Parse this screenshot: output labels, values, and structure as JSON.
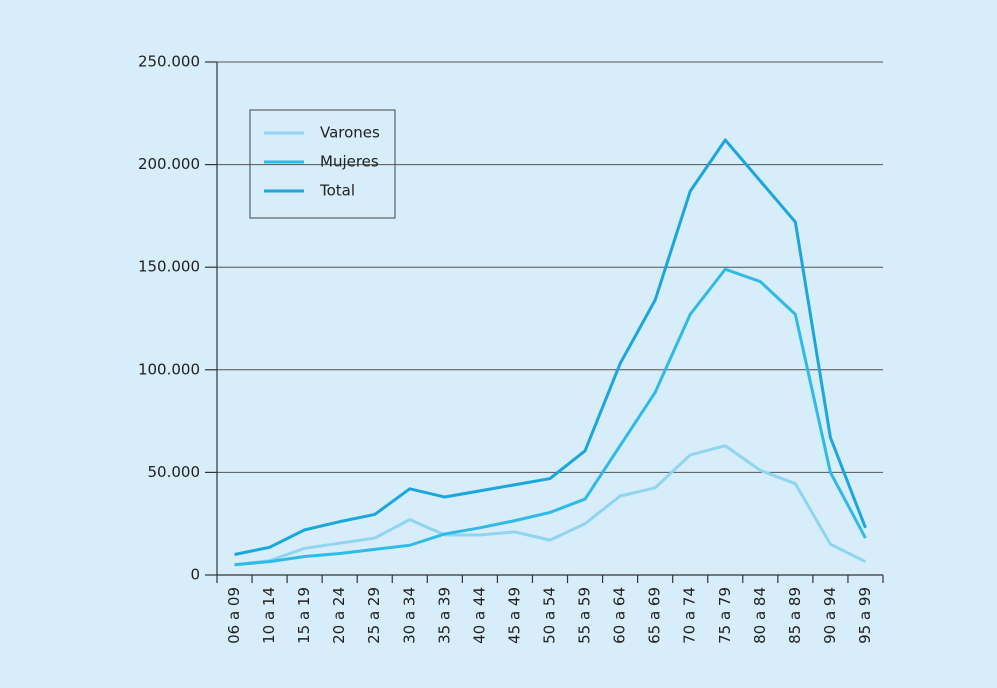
{
  "chart_data": {
    "type": "line",
    "categories": [
      "06 a 09",
      "10 a 14",
      "15 a 19",
      "20 a 24",
      "25 a 29",
      "30 a 34",
      "35 a 39",
      "40 a 44",
      "45 a 49",
      "50 a 54",
      "55 a 59",
      "60 a 64",
      "65 a 69",
      "70 a 74",
      "75 a 79",
      "80 a 84",
      "85 a 89",
      "90 a 94",
      "95 a 99"
    ],
    "series": [
      {
        "name": "Varones",
        "color": "#8fd5f1",
        "values": [
          5000,
          7000,
          13000,
          15500,
          18000,
          27000,
          19500,
          19500,
          21000,
          17000,
          25000,
          38500,
          42500,
          58500,
          63000,
          51000,
          44500,
          15000,
          6500
        ]
      },
      {
        "name": "Mujeres",
        "color": "#2fbbe8",
        "values": [
          5000,
          6500,
          9000,
          10500,
          12500,
          14500,
          20000,
          23000,
          26500,
          30500,
          37000,
          63000,
          89000,
          127000,
          149000,
          143000,
          127000,
          50000,
          18000
        ]
      },
      {
        "name": "Total",
        "color": "#1ba6df",
        "values": [
          10000,
          13500,
          22000,
          26000,
          29500,
          42000,
          38000,
          41000,
          44000,
          47000,
          60500,
          103000,
          134000,
          187000,
          212000,
          192000,
          172000,
          67000,
          23000
        ]
      }
    ],
    "ylim": [
      0,
      250000
    ],
    "yticks": [
      0,
      {
        "value": 50000,
        "label": "50.000"
      },
      {
        "value": 100000,
        "label": "100.000"
      },
      {
        "value": 150000,
        "label": "150.000"
      },
      {
        "value": 200000,
        "label": "200.000"
      },
      {
        "value": 250000,
        "label": "250.000"
      }
    ],
    "grid": true,
    "legend": "upper left"
  }
}
